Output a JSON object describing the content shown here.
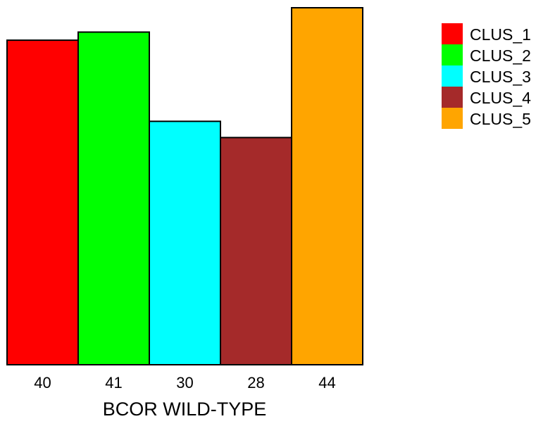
{
  "chart_data": {
    "type": "bar",
    "xlabel": "BCOR WILD-TYPE",
    "categories": [
      "CLUS_1",
      "CLUS_2",
      "CLUS_3",
      "CLUS_4",
      "CLUS_5"
    ],
    "values": [
      40,
      41,
      30,
      28,
      44
    ],
    "value_labels": [
      "40",
      "41",
      "30",
      "28",
      "44"
    ],
    "colors": [
      "#ff0000",
      "#00ff00",
      "#00ffff",
      "#a52a2a",
      "#ffa500"
    ],
    "ylim": [
      0,
      44
    ],
    "legend": {
      "position": "top-right",
      "entries": [
        "CLUS_1",
        "CLUS_2",
        "CLUS_3",
        "CLUS_4",
        "CLUS_5"
      ]
    },
    "grid": false
  }
}
